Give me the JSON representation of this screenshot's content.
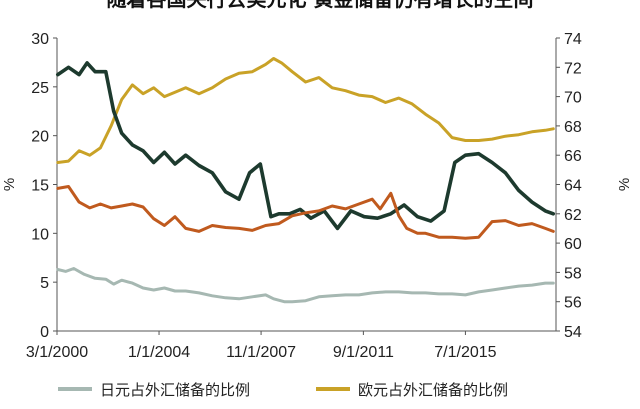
{
  "chart_data": {
    "type": "line",
    "title": "随着各国央行去美元化 黄金储备仍有增长的空间",
    "x_tick_labels": [
      "3/1/2000",
      "1/1/2004",
      "11/1/2007",
      "9/1/2011",
      "7/1/2015"
    ],
    "x_tick_values": [
      2000.17,
      2004.0,
      2007.83,
      2011.67,
      2015.5
    ],
    "xlim": [
      2000.17,
      2018.9
    ],
    "y_left": {
      "label": "%",
      "lim": [
        0,
        30
      ],
      "ticks": [
        "0",
        "5",
        "10",
        "15",
        "20",
        "25",
        "30"
      ]
    },
    "y_right": {
      "label": "%",
      "lim": [
        54,
        74
      ],
      "ticks": [
        "54",
        "56",
        "58",
        "60",
        "62",
        "64",
        "66",
        "68",
        "70",
        "72",
        "74"
      ]
    },
    "legend_position": "bottom",
    "colors": {
      "yen": "#a6b8b2",
      "euro": "#c9a227",
      "dark": "#1d3a2e",
      "orange": "#c05a1e"
    },
    "series": [
      {
        "name": "日元占外汇储备的比例",
        "axis": "left",
        "color": "#a6b8b2",
        "x": [
          2000.2,
          2000.5,
          2000.8,
          2001.2,
          2001.6,
          2002.0,
          2002.3,
          2002.6,
          2003.0,
          2003.4,
          2003.8,
          2004.2,
          2004.6,
          2005.0,
          2005.5,
          2006.0,
          2006.5,
          2007.0,
          2007.5,
          2008.0,
          2008.3,
          2008.7,
          2009.0,
          2009.5,
          2010.0,
          2010.5,
          2011.0,
          2011.5,
          2012.0,
          2012.5,
          2013.0,
          2013.5,
          2014.0,
          2014.5,
          2015.0,
          2015.5,
          2016.0,
          2016.5,
          2017.0,
          2017.5,
          2018.0,
          2018.5,
          2018.8
        ],
        "values": [
          6.3,
          6.1,
          6.4,
          5.8,
          5.4,
          5.3,
          4.8,
          5.2,
          4.9,
          4.4,
          4.2,
          4.4,
          4.1,
          4.1,
          3.9,
          3.6,
          3.4,
          3.3,
          3.5,
          3.7,
          3.3,
          3.0,
          3.0,
          3.1,
          3.5,
          3.6,
          3.7,
          3.7,
          3.9,
          4.0,
          4.0,
          3.9,
          3.9,
          3.8,
          3.8,
          3.7,
          4.0,
          4.2,
          4.4,
          4.6,
          4.7,
          4.9,
          4.9
        ]
      },
      {
        "name": "欧元占外汇储备的比例",
        "axis": "right",
        "color": "#c9a227",
        "x": [
          2000.2,
          2000.6,
          2001.0,
          2001.4,
          2001.8,
          2002.2,
          2002.6,
          2003.0,
          2003.4,
          2003.8,
          2004.2,
          2004.6,
          2005.0,
          2005.5,
          2006.0,
          2006.5,
          2007.0,
          2007.5,
          2008.0,
          2008.3,
          2008.6,
          2009.0,
          2009.5,
          2010.0,
          2010.5,
          2011.0,
          2011.5,
          2012.0,
          2012.5,
          2013.0,
          2013.5,
          2014.0,
          2014.5,
          2015.0,
          2015.5,
          2016.0,
          2016.5,
          2017.0,
          2017.5,
          2018.0,
          2018.5,
          2018.8
        ],
        "values": [
          65.5,
          65.6,
          66.3,
          66.0,
          66.5,
          68.0,
          69.8,
          70.8,
          70.2,
          70.6,
          70.0,
          70.3,
          70.6,
          70.2,
          70.6,
          71.2,
          71.6,
          71.7,
          72.2,
          72.6,
          72.3,
          71.7,
          71.0,
          71.3,
          70.6,
          70.4,
          70.1,
          70.0,
          69.6,
          69.9,
          69.5,
          68.8,
          68.2,
          67.2,
          67.0,
          67.0,
          67.1,
          67.3,
          67.4,
          67.6,
          67.7,
          67.8
        ]
      },
      {
        "axis": "right",
        "color": "#1d3a2e",
        "x": [
          2000.2,
          2000.6,
          2001.0,
          2001.3,
          2001.6,
          2002.0,
          2002.3,
          2002.6,
          2003.0,
          2003.4,
          2003.8,
          2004.2,
          2004.6,
          2005.0,
          2005.5,
          2006.0,
          2006.5,
          2007.0,
          2007.4,
          2007.8,
          2008.2,
          2008.5,
          2008.9,
          2009.3,
          2009.7,
          2010.2,
          2010.7,
          2011.2,
          2011.7,
          2012.2,
          2012.7,
          2013.2,
          2013.7,
          2014.2,
          2014.7,
          2015.1,
          2015.5,
          2016.0,
          2016.5,
          2017.0,
          2017.5,
          2018.0,
          2018.5,
          2018.8
        ],
        "values": [
          71.5,
          72.0,
          71.5,
          72.3,
          71.7,
          71.7,
          69.0,
          67.5,
          66.7,
          66.3,
          65.5,
          66.2,
          65.4,
          66.0,
          65.3,
          64.8,
          63.5,
          63.0,
          64.8,
          65.4,
          61.8,
          62.0,
          62.0,
          62.3,
          61.7,
          62.2,
          61.0,
          62.2,
          61.8,
          61.7,
          62.0,
          62.6,
          61.8,
          61.5,
          62.2,
          65.5,
          66.0,
          66.1,
          65.5,
          64.8,
          63.6,
          62.8,
          62.2,
          62.0
        ]
      },
      {
        "axis": "left",
        "color": "#c05a1e",
        "x": [
          2000.2,
          2000.6,
          2001.0,
          2001.4,
          2001.8,
          2002.2,
          2002.6,
          2003.0,
          2003.4,
          2003.8,
          2004.2,
          2004.6,
          2005.0,
          2005.5,
          2006.0,
          2006.5,
          2007.0,
          2007.5,
          2008.0,
          2008.5,
          2009.0,
          2009.5,
          2010.0,
          2010.5,
          2011.0,
          2011.5,
          2012.0,
          2012.3,
          2012.7,
          2013.0,
          2013.3,
          2013.7,
          2014.0,
          2014.5,
          2015.0,
          2015.5,
          2016.0,
          2016.5,
          2017.0,
          2017.5,
          2018.0,
          2018.5,
          2018.8
        ],
        "values": [
          14.6,
          14.8,
          13.2,
          12.6,
          13.0,
          12.6,
          12.8,
          13.0,
          12.7,
          11.5,
          10.8,
          11.7,
          10.5,
          10.2,
          10.8,
          10.6,
          10.5,
          10.3,
          10.8,
          11.0,
          11.8,
          12.1,
          12.3,
          12.8,
          12.5,
          13.0,
          13.5,
          12.5,
          14.1,
          11.8,
          10.5,
          10.0,
          10.0,
          9.6,
          9.6,
          9.5,
          9.6,
          11.2,
          11.3,
          10.8,
          11.0,
          10.5,
          10.2
        ]
      }
    ]
  }
}
